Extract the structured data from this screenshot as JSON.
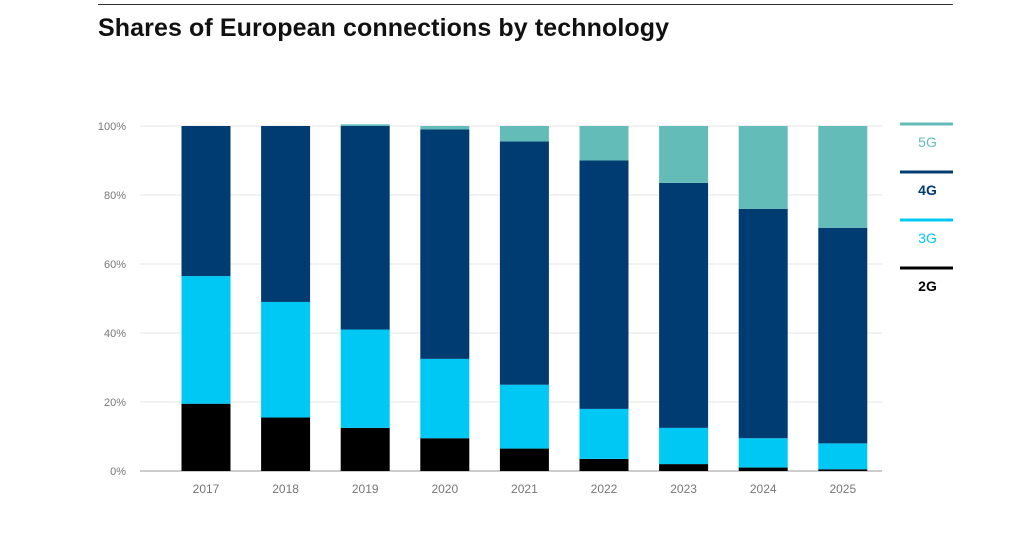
{
  "page": {
    "title": "Shares of European connections by technology"
  },
  "chart_data": {
    "type": "bar",
    "stacked": true,
    "title": "Shares of European connections by technology",
    "xlabel": "",
    "ylabel": "",
    "ylim": [
      0,
      100
    ],
    "y_ticks": [
      "0%",
      "20%",
      "40%",
      "60%",
      "80%",
      "100%"
    ],
    "y_tick_values": [
      0,
      20,
      40,
      60,
      80,
      100
    ],
    "grid": true,
    "legend_position": "right",
    "categories": [
      "2017",
      "2018",
      "2019",
      "2020",
      "2021",
      "2022",
      "2023",
      "2024",
      "2025"
    ],
    "series": [
      {
        "name": "2G",
        "color": "#000000",
        "values": [
          19.5,
          15.5,
          12.5,
          9.5,
          6.5,
          3.5,
          2,
          1,
          0.5
        ]
      },
      {
        "name": "3G",
        "color": "#00c8f5",
        "values": [
          37,
          33.5,
          28.5,
          23,
          18.5,
          14.5,
          10.5,
          8.5,
          7.5
        ]
      },
      {
        "name": "4G",
        "color": "#003c71",
        "values": [
          43.5,
          51,
          59,
          66.5,
          70.5,
          72,
          71,
          66.5,
          62.5
        ]
      },
      {
        "name": "5G",
        "color": "#63bcb8",
        "values": [
          0,
          0,
          0.5,
          1,
          4.5,
          10,
          16.5,
          24,
          29.5
        ]
      }
    ],
    "legend": [
      {
        "name": "5G",
        "color": "#63bcb8",
        "bold": false
      },
      {
        "name": "4G",
        "color": "#003c71",
        "bold": true
      },
      {
        "name": "3G",
        "color": "#00c8f5",
        "bold": false
      },
      {
        "name": "2G",
        "color": "#000000",
        "bold": true
      }
    ]
  }
}
